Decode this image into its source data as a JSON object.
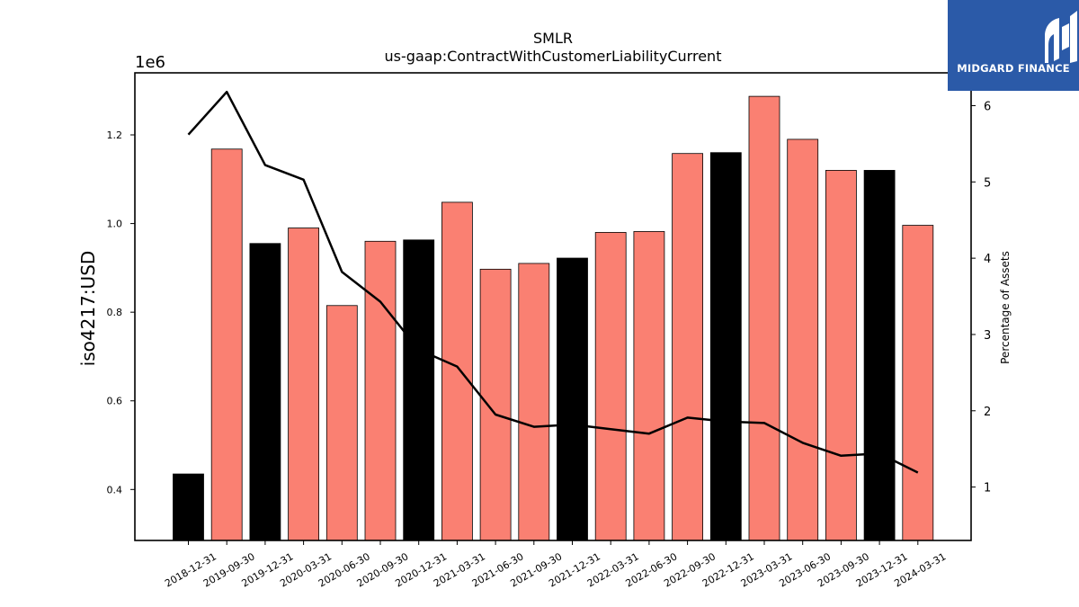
{
  "chart_data": {
    "type": "bar",
    "title": "SMLR",
    "subtitle": "us-gaap:ContractWithCustomerLiabilityCurrent",
    "ylabel": "iso4217:USD",
    "y2label": "Percentage of Assets",
    "y_offset_text": "1e6",
    "categories": [
      "2018-12-31",
      "2019-09-30",
      "2019-12-31",
      "2020-03-31",
      "2020-06-30",
      "2020-09-30",
      "2020-12-31",
      "2021-03-31",
      "2021-06-30",
      "2021-09-30",
      "2021-12-31",
      "2022-03-31",
      "2022-06-30",
      "2022-09-30",
      "2022-12-31",
      "2023-03-31",
      "2023-06-30",
      "2023-09-30",
      "2023-12-31",
      "2024-03-31"
    ],
    "series": [
      {
        "values": [
          435000,
          1168000,
          955000,
          990000,
          815000,
          960000,
          963000,
          1048000,
          897000,
          910000,
          922000,
          980000,
          982000,
          1158000,
          1160000,
          1287000,
          1190000,
          1120000,
          1120000,
          996000
        ],
        "bar_colors": [
          "#000000",
          "#fa8072",
          "#000000",
          "#fa8072",
          "#fa8072",
          "#fa8072",
          "#000000",
          "#fa8072",
          "#fa8072",
          "#fa8072",
          "#000000",
          "#fa8072",
          "#fa8072",
          "#fa8072",
          "#000000",
          "#fa8072",
          "#fa8072",
          "#fa8072",
          "#000000",
          "#fa8072"
        ]
      },
      {
        "axis": "right",
        "type": "line",
        "color": "#000000",
        "values": [
          5.62,
          6.18,
          5.22,
          5.03,
          3.82,
          3.43,
          2.8,
          2.58,
          1.95,
          1.79,
          1.82,
          1.76,
          1.7,
          1.91,
          1.86,
          1.84,
          1.58,
          1.41,
          1.44,
          1.19
        ]
      }
    ],
    "ylim": [
      285000,
      1340000
    ],
    "yticks": [
      "0.4",
      "0.6",
      "0.8",
      "1.0",
      "1.2"
    ],
    "ytick_values": [
      400000,
      600000,
      800000,
      1000000,
      1200000
    ],
    "y2lim": [
      0.3,
      6.43
    ],
    "y2ticks": [
      "1",
      "2",
      "3",
      "4",
      "5",
      "6"
    ],
    "y2tick_values": [
      1,
      2,
      3,
      4,
      5,
      6
    ],
    "grid": false,
    "colors": {
      "annual": "#000000",
      "quarterly": "#fa8072",
      "line": "#000000"
    }
  },
  "logo": {
    "text": "MIDGARD FINANCE",
    "color": "#2b5aa8"
  }
}
